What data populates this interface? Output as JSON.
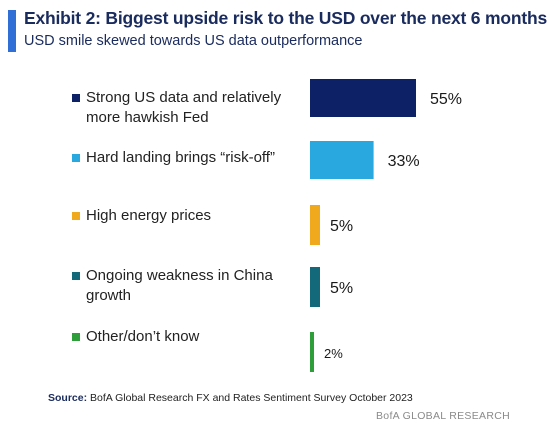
{
  "chart_data": {
    "type": "bar",
    "orientation": "horizontal",
    "title": "Exhibit 2: Biggest upside risk to the USD over the next 6 months",
    "subtitle": "USD smile skewed towards US data outperformance",
    "categories": [
      "Strong US data and relatively more hawkish Fed",
      "Hard landing brings “risk-off”",
      "High energy prices",
      "Ongoing weakness in China growth",
      "Other/don’t know"
    ],
    "values": [
      55,
      33,
      5,
      5,
      2
    ],
    "value_labels": [
      "55%",
      "33%",
      "5%",
      "5%",
      "2%"
    ],
    "colors": [
      "#0d2266",
      "#29a8e0",
      "#f0a81c",
      "#13687a",
      "#2e9e3a"
    ],
    "unit": "%",
    "xlim": [
      0,
      55
    ],
    "grid": false,
    "legend": "left"
  },
  "source_label": "Source:",
  "source_text": "BofA Global Research FX and Rates Sentiment Survey October 2023",
  "brand": "BofA GLOBAL RESEARCH"
}
